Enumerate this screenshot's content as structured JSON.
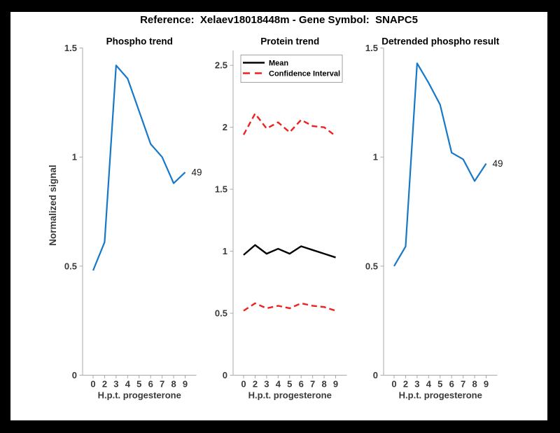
{
  "figure": {
    "title": "Reference:  Xelaev18018448m - Gene Symbol:  SNAPC5",
    "background": "#000000",
    "canvas_color": "#ffffff"
  },
  "colors": {
    "blue": "#1878c8",
    "red": "#ee2020",
    "black": "#000000",
    "axis": "#a9a9a9",
    "tick_text": "#3a3a3a",
    "title_text": "#000000",
    "end_label_text": "#1a1a1a"
  },
  "chart_data": [
    {
      "type": "line",
      "title": "Phospho trend",
      "xlabel": "H.p.t. progesterone",
      "ylabel": "Normalized signal",
      "x_tick_labels": [
        "0",
        "2",
        "3",
        "4",
        "5",
        "6",
        "7",
        "8",
        "9"
      ],
      "y_ticks": [
        {
          "v": 0,
          "label": "0"
        },
        {
          "v": 0.5,
          "label": "0.5"
        },
        {
          "v": 1,
          "label": "1"
        },
        {
          "v": 1.5,
          "label": "1.5"
        }
      ],
      "ylim": [
        0,
        1.5
      ],
      "grid": false,
      "series": [
        {
          "name": "phospho-trend-line",
          "color_key": "blue",
          "style": "solid",
          "values": [
            0.48,
            0.61,
            1.42,
            1.36,
            1.21,
            1.06,
            1.0,
            0.88,
            0.93
          ]
        }
      ],
      "end_label": "49"
    },
    {
      "type": "line",
      "title": "Protein trend",
      "xlabel": "H.p.t. progesterone",
      "ylabel": "",
      "x_tick_labels": [
        "0",
        "2",
        "3",
        "4",
        "5",
        "6",
        "7",
        "8",
        "9"
      ],
      "y_ticks": [
        {
          "v": 0,
          "label": "0"
        },
        {
          "v": 0.5,
          "label": "0.5"
        },
        {
          "v": 1,
          "label": "1"
        },
        {
          "v": 1.5,
          "label": "1.5"
        },
        {
          "v": 2,
          "label": "2"
        },
        {
          "v": 2.5,
          "label": "2.5"
        }
      ],
      "ylim": [
        0,
        2.62
      ],
      "grid": false,
      "legend": {
        "position": "top-left",
        "entries": [
          {
            "label": "Mean",
            "color_key": "black",
            "style": "solid"
          },
          {
            "label": "Confidence Interval",
            "color_key": "red",
            "style": "dashed"
          }
        ]
      },
      "series": [
        {
          "name": "mean-line",
          "color_key": "black",
          "style": "solid",
          "values": [
            0.97,
            1.05,
            0.98,
            1.02,
            0.98,
            1.04,
            1.01,
            0.98,
            0.95
          ]
        },
        {
          "name": "confidence-upper-line",
          "color_key": "red",
          "style": "dashed",
          "values": [
            1.94,
            2.11,
            1.99,
            2.04,
            1.96,
            2.06,
            2.01,
            2.0,
            1.93
          ]
        },
        {
          "name": "confidence-lower-line",
          "color_key": "red",
          "style": "dashed",
          "values": [
            0.52,
            0.58,
            0.54,
            0.56,
            0.54,
            0.58,
            0.56,
            0.55,
            0.52
          ]
        }
      ]
    },
    {
      "type": "line",
      "title": "Detrended phospho result",
      "xlabel": "H.p.t. progesterone",
      "ylabel": "",
      "x_tick_labels": [
        "0",
        "2",
        "3",
        "4",
        "5",
        "6",
        "7",
        "8",
        "9"
      ],
      "y_ticks": [
        {
          "v": 0,
          "label": "0"
        },
        {
          "v": 0.5,
          "label": "0.5"
        },
        {
          "v": 1,
          "label": "1"
        },
        {
          "v": 1.5,
          "label": "1.5"
        }
      ],
      "ylim": [
        0,
        1.5
      ],
      "grid": false,
      "series": [
        {
          "name": "detrended-phospho-line",
          "color_key": "blue",
          "style": "solid",
          "values": [
            0.5,
            0.59,
            1.43,
            1.34,
            1.24,
            1.02,
            0.99,
            0.89,
            0.97
          ]
        }
      ],
      "end_label": "49"
    }
  ]
}
